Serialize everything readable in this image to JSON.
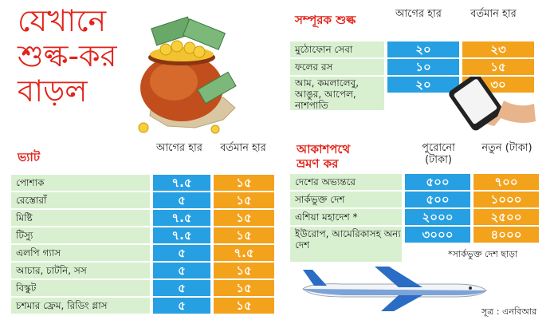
{
  "headline": [
    "যেখানে",
    "শুল্ক-কর",
    "বাড়ল"
  ],
  "colors": {
    "accent": "#e2231a",
    "blue": "#26a0e2",
    "orange": "#f3a21c",
    "label_bg": "#d8f0d0"
  },
  "supplementary": {
    "title": "সম্পূরক শুল্ক",
    "col_prev": "আগের হার",
    "col_curr": "বর্তমান হার",
    "rows": [
      {
        "label": "মুঠোফোন সেবা",
        "prev": "২০",
        "curr": "২৩"
      },
      {
        "label": "ফলের রস",
        "prev": "১০",
        "curr": "১৫"
      },
      {
        "label": "আম, কমলালেবু, আঙুর, আপেল, নাশপাতি",
        "prev": "২০",
        "curr": "৩০"
      }
    ]
  },
  "vat": {
    "title": "ভ্যাট",
    "col_prev": "আগের হার",
    "col_curr": "বর্তমান হার",
    "rows": [
      {
        "label": "পোশাক",
        "prev": "৭.৫",
        "curr": "১৫"
      },
      {
        "label": "রেস্তোরাঁ",
        "prev": "৫",
        "curr": "১৫"
      },
      {
        "label": "মিষ্টি",
        "prev": "৭.৫",
        "curr": "১৫"
      },
      {
        "label": "টিস্যু",
        "prev": "৭.৫",
        "curr": "১৫"
      },
      {
        "label": "এলপি গ্যাস",
        "prev": "৫",
        "curr": "৭.৫"
      },
      {
        "label": "আচার, চাটনি, সস",
        "prev": "৫",
        "curr": "১৫"
      },
      {
        "label": "বিস্কুট",
        "prev": "৫",
        "curr": "১৫"
      },
      {
        "label": "চশমার ফ্রেম, রিডিং গ্লাস",
        "prev": "৫",
        "curr": "১৫"
      }
    ]
  },
  "air_travel": {
    "title_line1": "আকাশপথে",
    "title_line2": "ভ্রমণ কর",
    "col_prev": "পুরোনো (টাকা)",
    "col_curr": "নতুন (টাকা)",
    "rows": [
      {
        "label": "দেশের অভ্যন্তরে",
        "prev": "৫০০",
        "curr": "৭০০"
      },
      {
        "label": "সার্কভুক্ত দেশ",
        "prev": "৫০০",
        "curr": "১০০০"
      },
      {
        "label": "এশিয়া মহাদেশ *",
        "prev": "২০০০",
        "curr": "২৫০০"
      },
      {
        "label": "ইউরোপ, আমেরিকাসহ অন্য দেশ",
        "prev": "৩০০০",
        "curr": "৪০০০"
      }
    ],
    "footnote": "*সার্কভুক্ত দেশ ছাড়া"
  },
  "source": "সূত্র : এনবিআর",
  "illustrations": [
    "money-pot-icon",
    "smartphone-icon",
    "airplane-icon"
  ]
}
